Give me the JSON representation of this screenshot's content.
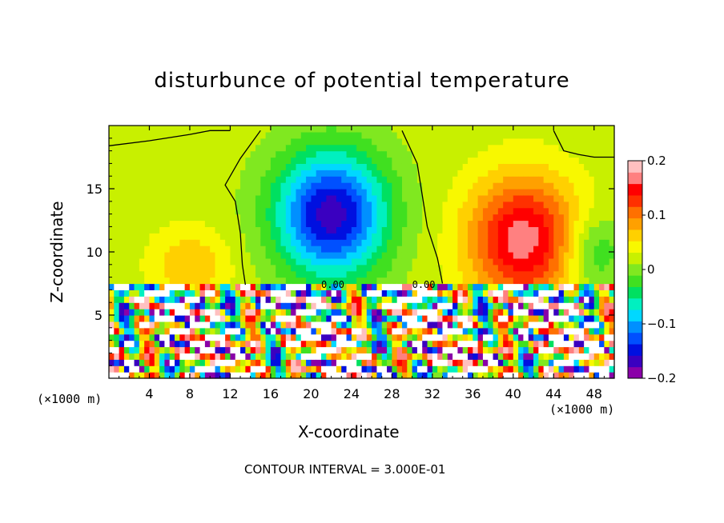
{
  "chart_data": {
    "type": "heatmap",
    "title": "disturbunce of potential temperature",
    "xlabel": "X-coordinate",
    "ylabel": "Z-coordinate",
    "x_unit": "(×1000 m)",
    "xlim": [
      0,
      50
    ],
    "ylim": [
      0,
      20
    ],
    "x_ticks": [
      4,
      8,
      12,
      16,
      20,
      24,
      28,
      32,
      36,
      40,
      44,
      48
    ],
    "y_ticks": [
      5,
      10,
      15
    ],
    "colorbar": {
      "range": [
        -0.2,
        0.2
      ],
      "ticks": [
        {
          "value": 0.2,
          "label": "0.2"
        },
        {
          "value": 0.1,
          "label": "0.1"
        },
        {
          "value": 0,
          "label": "0"
        },
        {
          "value": -0.1,
          "label": "−0.1"
        },
        {
          "value": -0.2,
          "label": "−0.2"
        }
      ],
      "colors": [
        "#8a00a8",
        "#3a00c0",
        "#0010e0",
        "#0050ff",
        "#0090ff",
        "#00d8ff",
        "#00f0c0",
        "#00e060",
        "#40e020",
        "#80e820",
        "#c8f000",
        "#f8f800",
        "#ffd000",
        "#ffa000",
        "#ff7000",
        "#ff3000",
        "#ff0000",
        "#ff8080",
        "#ffc0c0"
      ]
    },
    "contour_labels": [
      "0.00",
      "0.00"
    ],
    "features": [
      {
        "kind": "negative-max",
        "x": 22,
        "z": 13,
        "value": -0.19
      },
      {
        "kind": "positive-max",
        "x": 41,
        "z": 11,
        "value": 0.15
      }
    ],
    "annotation": "CONTOUR INTERVAL = 3.000E-01"
  }
}
